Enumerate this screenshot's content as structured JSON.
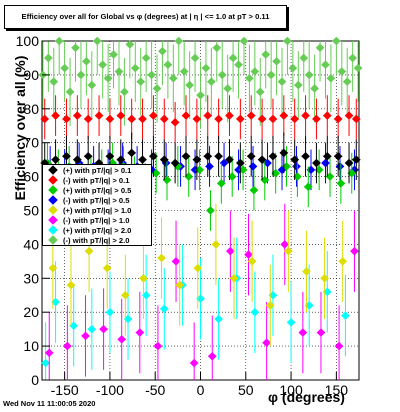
{
  "title": "Efficiency over all for Global vs φ (degrees) at | η | <= 1.0 at pT > 0.11",
  "footer": {
    "date": "Wed Nov 11 11:00:05 2020"
  },
  "chart_data": {
    "type": "scatter",
    "xlabel": "φ (degrees)",
    "ylabel": "Efficiency over all (%)",
    "xlim": [
      -175,
      175
    ],
    "ylim": [
      0,
      100
    ],
    "xticks": [
      -150,
      -100,
      -50,
      0,
      50,
      100,
      150
    ],
    "yticks": [
      0,
      10,
      20,
      30,
      40,
      50,
      60,
      70,
      80,
      90,
      100
    ],
    "grid": true,
    "legend_position": "middle-left",
    "series": [
      {
        "name": "(+) with pT/|q| > 0.1",
        "color": "#000000",
        "x": [
          -172,
          -160,
          -148,
          -136,
          -124,
          -112,
          -100,
          -88,
          -76,
          -64,
          -52,
          -40,
          -28,
          -16,
          -4,
          8,
          20,
          32,
          44,
          56,
          68,
          80,
          92,
          104,
          116,
          128,
          140,
          152,
          164,
          172
        ],
        "y": [
          64,
          65,
          66,
          65,
          66,
          64,
          66,
          65,
          67,
          65,
          66,
          65,
          64,
          66,
          65,
          66,
          66,
          65,
          64,
          66,
          65,
          66,
          67,
          65,
          66,
          64,
          66,
          66,
          64,
          65
        ]
      },
      {
        "name": "(-) with pT/|q| > 0.1",
        "color": "#ff0000",
        "x": [
          -172,
          -160,
          -148,
          -136,
          -124,
          -112,
          -100,
          -88,
          -76,
          -64,
          -52,
          -40,
          -28,
          -16,
          -4,
          8,
          20,
          32,
          44,
          56,
          68,
          80,
          92,
          104,
          116,
          128,
          140,
          152,
          164,
          172
        ],
        "y": [
          77,
          78,
          77,
          78,
          77,
          78,
          77,
          78,
          77,
          77,
          78,
          77,
          76,
          78,
          77,
          78,
          77,
          78,
          77,
          78,
          77,
          77,
          78,
          77,
          78,
          77,
          78,
          77,
          78,
          77
        ]
      },
      {
        "name": "(+) with pT/|q| > 0.5",
        "color": "#00cc00",
        "x": [
          -169,
          -157,
          -145,
          -133,
          -121,
          -109,
          -97,
          -85,
          -73,
          -61,
          -49,
          -37,
          -25,
          -13,
          -1,
          11,
          23,
          35,
          47,
          59,
          71,
          83,
          95,
          107,
          119,
          131,
          143,
          155,
          167
        ],
        "y": [
          64,
          62,
          63,
          58,
          60,
          62,
          64,
          63,
          60,
          58,
          61,
          59,
          63,
          60,
          62,
          50,
          58,
          60,
          62,
          56,
          59,
          61,
          63,
          60,
          57,
          62,
          60,
          58,
          61
        ]
      },
      {
        "name": "(-) with pT/|q| > 0.5",
        "color": "#0000ff",
        "x": [
          -166,
          -150,
          -134,
          -118,
          -102,
          -86,
          -70,
          -54,
          -38,
          -22,
          -6,
          10,
          26,
          42,
          58,
          74,
          90,
          106,
          122,
          138,
          154,
          170
        ],
        "y": [
          63,
          62,
          64,
          63,
          62,
          64,
          63,
          62,
          64,
          63,
          62,
          63,
          64,
          62,
          63,
          64,
          62,
          63,
          62,
          64,
          63,
          62
        ]
      },
      {
        "name": "(+) with pT/|q| > 1.0",
        "color": "#dddd00",
        "x": [
          -163,
          -143,
          -123,
          -103,
          -83,
          -63,
          -43,
          -23,
          -3,
          17,
          37,
          57,
          77,
          97,
          117,
          137,
          157
        ],
        "y": [
          33,
          28,
          38,
          33,
          25,
          30,
          36,
          28,
          33,
          40,
          30,
          35,
          22,
          38,
          32,
          30,
          35
        ]
      },
      {
        "name": "(-) with pT/|q| > 1.0",
        "color": "#ff00ff",
        "x": [
          -167,
          -147,
          -127,
          -107,
          -87,
          -67,
          -47,
          -27,
          -7,
          13,
          33,
          53,
          73,
          93,
          113,
          133,
          153,
          170
        ],
        "y": [
          8,
          10,
          13,
          15,
          12,
          14,
          10,
          35,
          5,
          7,
          38,
          37,
          11,
          40,
          14,
          14,
          10,
          38
        ]
      },
      {
        "name": "(+) with pT/|q| > 2.0",
        "color": "#00ffff",
        "x": [
          -171,
          -160,
          -140,
          -120,
          -100,
          -80,
          -60,
          -40,
          -20,
          0,
          20,
          40,
          60,
          80,
          100,
          120,
          140,
          160
        ],
        "y": [
          5,
          23,
          16,
          15,
          20,
          18,
          25,
          21,
          28,
          24,
          18,
          30,
          20,
          25,
          17,
          22,
          26,
          19
        ]
      },
      {
        "name": "(-) with pT/|q| > 2.0",
        "color": "#66cc55",
        "x": [
          -174,
          -168,
          -162,
          -156,
          -150,
          -144,
          -138,
          -132,
          -126,
          -120,
          -114,
          -108,
          -102,
          -96,
          -90,
          -84,
          -78,
          -72,
          -66,
          -60,
          -54,
          -48,
          -42,
          -36,
          -30,
          -24,
          -18,
          -12,
          -6,
          0,
          6,
          12,
          18,
          24,
          30,
          36,
          42,
          48,
          54,
          60,
          66,
          72,
          78,
          84,
          90,
          96,
          102,
          108,
          114,
          120,
          126,
          132,
          138,
          144,
          150,
          156,
          162,
          168,
          174
        ],
        "y": [
          90,
          95,
          88,
          100,
          92,
          85,
          98,
          90,
          94,
          87,
          100,
          93,
          89,
          96,
          91,
          85,
          99,
          92,
          88,
          95,
          90,
          86,
          97,
          93,
          89,
          100,
          91,
          87,
          95,
          84,
          92,
          88,
          98,
          90,
          86,
          95,
          93,
          100,
          89,
          91,
          85,
          96,
          90,
          94,
          88,
          100,
          92,
          87,
          95,
          90,
          86,
          98,
          93,
          89,
          100,
          91,
          88,
          95,
          92
        ]
      }
    ]
  }
}
